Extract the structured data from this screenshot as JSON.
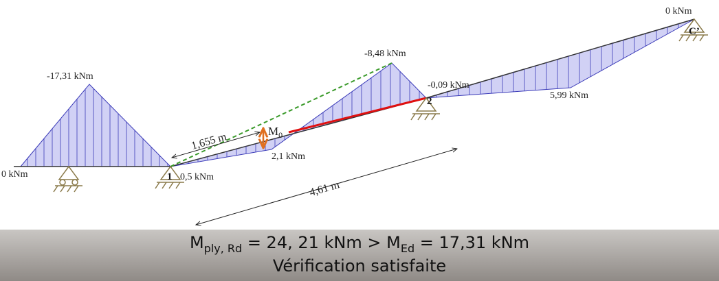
{
  "diagram": {
    "labels": {
      "left_end_moment": "0 kNm",
      "left_peak_moment": "-17,31 kNm",
      "node_1": "1",
      "node_1_moment": "0,5 kNm",
      "span_length_a": "1,655 m",
      "m0_symbol": "M",
      "m0_subscript": "0",
      "span_min_moment": "2,1 kNm",
      "span_length_total": "4,61 m",
      "span_peak_moment": "-8,48 kNm",
      "node_2_moment": "-0,09 kNm",
      "node_2": "2",
      "right_span_moment": "5,99 kNm",
      "right_end_moment": "0 kNm",
      "node_c": "C’"
    },
    "formula": {
      "m1": "M",
      "m1_sub": "ply, Rd",
      "middle": " = 24, 21 kNm > M",
      "m2_sub": "Ed",
      "end": " = 17,31 kNm"
    },
    "result": "Vérification satisfaite"
  }
}
